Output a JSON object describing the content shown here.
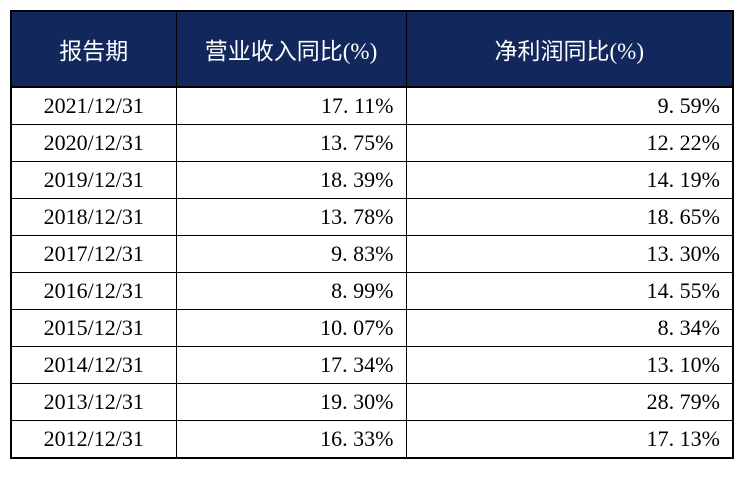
{
  "colors": {
    "header_bg": "#12285c",
    "header_text": "#ffffff",
    "border": "#000000",
    "cell_text": "#000000",
    "row_bg": "#ffffff",
    "page_bg": "#ffffff"
  },
  "table": {
    "headers": [
      "报告期",
      "营业收入同比(%)",
      "净利润同比(%)"
    ],
    "rows": [
      {
        "period": "2021/12/31",
        "revenue_yoy": "17. 11%",
        "net_profit_yoy": "9. 59%"
      },
      {
        "period": "2020/12/31",
        "revenue_yoy": "13. 75%",
        "net_profit_yoy": "12. 22%"
      },
      {
        "period": "2019/12/31",
        "revenue_yoy": "18. 39%",
        "net_profit_yoy": "14. 19%"
      },
      {
        "period": "2018/12/31",
        "revenue_yoy": "13. 78%",
        "net_profit_yoy": "18. 65%"
      },
      {
        "period": "2017/12/31",
        "revenue_yoy": "9. 83%",
        "net_profit_yoy": "13. 30%"
      },
      {
        "period": "2016/12/31",
        "revenue_yoy": "8. 99%",
        "net_profit_yoy": "14. 55%"
      },
      {
        "period": "2015/12/31",
        "revenue_yoy": "10. 07%",
        "net_profit_yoy": "8. 34%"
      },
      {
        "period": "2014/12/31",
        "revenue_yoy": "17. 34%",
        "net_profit_yoy": "13. 10%"
      },
      {
        "period": "2013/12/31",
        "revenue_yoy": "19. 30%",
        "net_profit_yoy": "28. 79%"
      },
      {
        "period": "2012/12/31",
        "revenue_yoy": "16. 33%",
        "net_profit_yoy": "17. 13%"
      }
    ]
  },
  "chart_data": {
    "type": "table",
    "title": "",
    "categories": [
      "2021/12/31",
      "2020/12/31",
      "2019/12/31",
      "2018/12/31",
      "2017/12/31",
      "2016/12/31",
      "2015/12/31",
      "2014/12/31",
      "2013/12/31",
      "2012/12/31"
    ],
    "series": [
      {
        "name": "营业收入同比(%)",
        "values": [
          17.11,
          13.75,
          18.39,
          13.78,
          9.83,
          8.99,
          10.07,
          17.34,
          19.3,
          16.33
        ]
      },
      {
        "name": "净利润同比(%)",
        "values": [
          9.59,
          12.22,
          14.19,
          18.65,
          13.3,
          14.55,
          8.34,
          13.1,
          28.79,
          17.13
        ]
      }
    ]
  }
}
